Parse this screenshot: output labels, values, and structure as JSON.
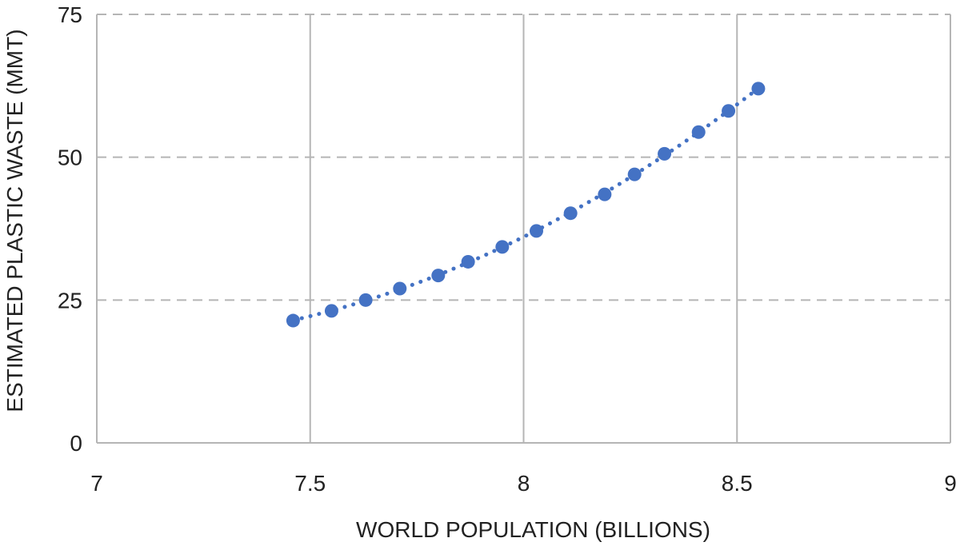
{
  "chart_data": {
    "type": "scatter",
    "title": "",
    "xlabel": "WORLD POPULATION (BILLIONS)",
    "ylabel": "ESTIMATED PLASTIC WASTE (MMT)",
    "xlim": [
      7,
      9
    ],
    "ylim": [
      0,
      75
    ],
    "x_ticks": [
      7,
      7.5,
      8,
      8.5,
      9
    ],
    "x_tick_labels": [
      "7",
      "7.5",
      "8",
      "8.5",
      "9"
    ],
    "y_ticks": [
      0,
      25,
      50,
      75
    ],
    "y_tick_labels": [
      "0",
      "25",
      "50",
      "75"
    ],
    "grid": {
      "vertical": "solid",
      "horizontal": "dashed"
    },
    "legend": "none",
    "series": [
      {
        "x": [
          7.46,
          7.55,
          7.63,
          7.71,
          7.8,
          7.87,
          7.95,
          8.03,
          8.11,
          8.19,
          8.26,
          8.33,
          8.41,
          8.48,
          8.55
        ],
        "y": [
          21.4,
          23.1,
          25.0,
          27.0,
          29.3,
          31.7,
          34.3,
          37.1,
          40.2,
          43.5,
          47.0,
          50.6,
          54.4,
          58.1,
          62.0
        ],
        "color": "#4472C4",
        "trendline": "dotted"
      }
    ],
    "colors": {
      "marker": "#4472C4",
      "grid": "#B5B5B5",
      "axis": "#B5B5B5",
      "text": "#222222"
    }
  }
}
